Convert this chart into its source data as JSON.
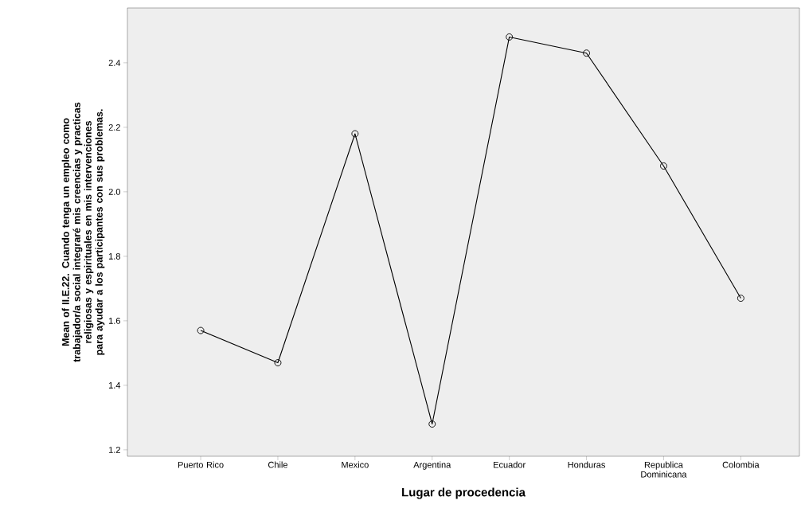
{
  "chart_data": {
    "type": "line",
    "xlabel": "Lugar de procedencia",
    "ylabel": "Mean of II.E.22. Cuando tenga un empleo como trabajador/a social integraré mis creencias y practicas religiosas y espirituales en mis intervenciones para ayudar a los participantes con sus problemas.",
    "categories": [
      "Puerto Rico",
      "Chile",
      "Mexico",
      "Argentina",
      "Ecuador",
      "Honduras",
      "Republica Dominicana",
      "Colombia"
    ],
    "series": [
      {
        "color": "#000000",
        "values": [
          1.57,
          1.47,
          2.18,
          1.28,
          2.48,
          2.43,
          2.08,
          1.67
        ]
      }
    ],
    "ylim": [
      1.18,
      2.57
    ],
    "yticks": [
      1.2,
      1.4,
      1.6,
      1.8,
      {
        "value": 2.0,
        "label": "2.0"
      },
      2.2,
      2.4
    ],
    "marker": "circle",
    "line_style": "solid",
    "grid": false
  }
}
